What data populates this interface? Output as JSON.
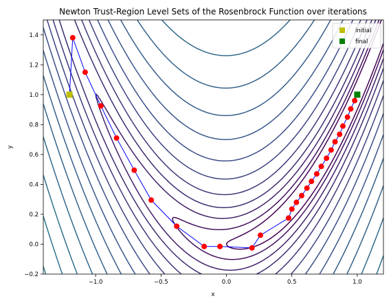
{
  "chart_data": {
    "type": "scatter",
    "title": "Newton Trust-Region Level Sets of the Rosenbrock Function over iterations",
    "xlabel": "x",
    "ylabel": "y",
    "xlim": [
      -1.4,
      1.2
    ],
    "ylim": [
      -0.2,
      1.5
    ],
    "xticks": [
      -1.0,
      -0.5,
      0.0,
      0.5,
      1.0
    ],
    "xtick_labels": [
      "−1.0",
      "−0.5",
      "0.0",
      "0.5",
      "1.0"
    ],
    "yticks": [
      -0.2,
      0.0,
      0.2,
      0.4,
      0.6,
      0.8,
      1.0,
      1.2,
      1.4
    ],
    "ytick_labels": [
      "−0.2",
      "0.0",
      "0.2",
      "0.4",
      "0.6",
      "0.8",
      "1.0",
      "1.2",
      "1.4"
    ],
    "grid": false,
    "legend_position": "top-right",
    "contour_levels": [
      1,
      2,
      4,
      7,
      12,
      20,
      32,
      50,
      75,
      110,
      160,
      230,
      320,
      450,
      620,
      850,
      1150,
      1550
    ],
    "contour_colormap": [
      "#440154",
      "#3b528b",
      "#21908c"
    ],
    "path_color": "#0000ff",
    "iterate_color": "#ff0000",
    "series": [
      {
        "name": "initial",
        "marker": "square",
        "color": "#bfbf00",
        "points": [
          [
            -1.2,
            1.0
          ]
        ]
      },
      {
        "name": "final",
        "marker": "square",
        "color": "#008000",
        "points": [
          [
            1.0,
            1.0
          ]
        ]
      }
    ],
    "iterates": [
      [
        -1.2,
        1.0
      ],
      [
        -1.175,
        1.381
      ],
      [
        -1.08,
        1.15
      ],
      [
        -0.96,
        0.925
      ],
      [
        -0.84,
        0.71
      ],
      [
        -0.705,
        0.495
      ],
      [
        -0.575,
        0.295
      ],
      [
        -0.38,
        0.12
      ],
      [
        -0.17,
        -0.015
      ],
      [
        -0.05,
        -0.015
      ],
      [
        0.195,
        -0.025
      ],
      [
        0.26,
        0.06
      ],
      [
        0.475,
        0.175
      ],
      [
        0.5,
        0.235
      ],
      [
        0.535,
        0.28
      ],
      [
        0.575,
        0.325
      ],
      [
        0.615,
        0.375
      ],
      [
        0.65,
        0.42
      ],
      [
        0.69,
        0.47
      ],
      [
        0.725,
        0.52
      ],
      [
        0.765,
        0.575
      ],
      [
        0.8,
        0.63
      ],
      [
        0.83,
        0.685
      ],
      [
        0.865,
        0.735
      ],
      [
        0.89,
        0.79
      ],
      [
        0.925,
        0.85
      ],
      [
        0.95,
        0.905
      ],
      [
        0.98,
        0.96
      ],
      [
        1.0,
        1.0
      ]
    ]
  }
}
